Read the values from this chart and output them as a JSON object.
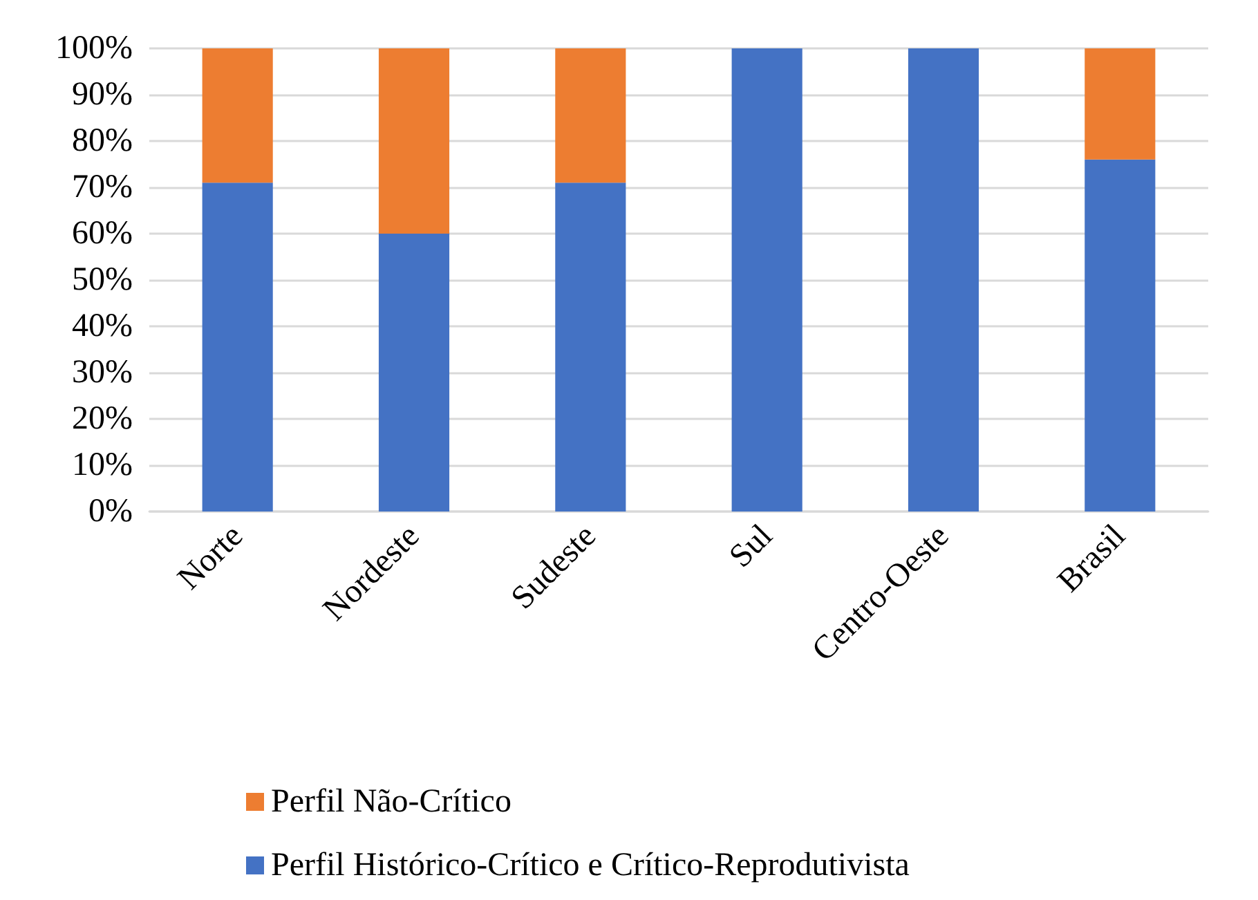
{
  "chart_data": {
    "type": "bar",
    "stacked": true,
    "categories": [
      "Norte",
      "Nordeste",
      "Sudeste",
      "Sul",
      "Centro-Oeste",
      "Brasil"
    ],
    "series": [
      {
        "name": "Perfil Histórico-Crítico e Crítico-Reprodutivista",
        "color": "#4472c4",
        "values": [
          71,
          60,
          71,
          100,
          100,
          76
        ]
      },
      {
        "name": "Perfil Não-Crítico",
        "color": "#ed7d31",
        "values": [
          29,
          40,
          29,
          0,
          0,
          24
        ]
      }
    ],
    "ylim": [
      0,
      100
    ],
    "yticks": [
      {
        "value": 0,
        "label": "0%"
      },
      {
        "value": 10,
        "label": "10%"
      },
      {
        "value": 20,
        "label": "20%"
      },
      {
        "value": 30,
        "label": "30%"
      },
      {
        "value": 40,
        "label": "40%"
      },
      {
        "value": 50,
        "label": "50%"
      },
      {
        "value": 60,
        "label": "60%"
      },
      {
        "value": 70,
        "label": "70%"
      },
      {
        "value": 80,
        "label": "80%"
      },
      {
        "value": 90,
        "label": "90%"
      },
      {
        "value": 100,
        "label": "100%"
      }
    ],
    "grid": "y",
    "legend": "bottom"
  }
}
